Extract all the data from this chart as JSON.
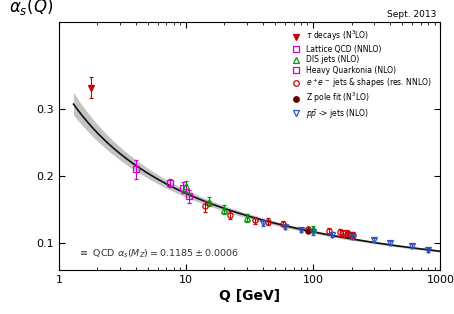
{
  "title": "Sept. 2013",
  "ylabel": "$\\alpha_s(Q)$",
  "xlabel": "Q [GeV]",
  "xlim": [
    1,
    1000
  ],
  "ylim": [
    0.06,
    0.43
  ],
  "yticks": [
    0.1,
    0.2,
    0.3
  ],
  "annotation": "$\\equiv$ QCD $\\alpha_s(M_Z) = 0.1185 \\pm 0.0006$",
  "qcd_band_color": "#aaaaaa",
  "curve_color": "#111111",
  "datasets": {
    "tau": {
      "label": "$\\tau$ decays (N$^3$LO)",
      "color": "#cc0000",
      "marker": "v",
      "filled": true,
      "x": [
        1.78
      ],
      "y": [
        0.332
      ],
      "yerr": [
        0.016
      ]
    },
    "lattice": {
      "label": "Lattice QCD (NNLO)",
      "color": "#cc00cc",
      "marker": "s",
      "filled": false,
      "x": [
        7.5,
        9.5
      ],
      "y": [
        0.19,
        0.183
      ],
      "yerr": [
        0.006,
        0.008
      ]
    },
    "quarkonia": {
      "label": "Heavy Quarkonia (NLO)",
      "color": "#cc00cc",
      "marker": "s",
      "filled": false,
      "x": [
        4.0,
        10.5
      ],
      "y": [
        0.21,
        0.17
      ],
      "yerr": [
        0.014,
        0.01
      ]
    },
    "dis": {
      "label": "DIS jets (NLO)",
      "color": "#009900",
      "marker": "^",
      "filled": false,
      "x": [
        10.0,
        15.0,
        20.0,
        30.0,
        100.0
      ],
      "y": [
        0.185,
        0.162,
        0.15,
        0.138,
        0.121
      ],
      "yerr": [
        0.008,
        0.007,
        0.007,
        0.006,
        0.005
      ]
    },
    "ee": {
      "label": "$e^+e^-$ jets & shapes (res. NNLO)",
      "color": "#cc0000",
      "marker": "o",
      "filled": false,
      "x": [
        14.0,
        22.0,
        35.0,
        44.0,
        58.0,
        91.2,
        133.0,
        161.0,
        172.0,
        183.0,
        189.0,
        197.0,
        206.0
      ],
      "y": [
        0.155,
        0.142,
        0.134,
        0.132,
        0.129,
        0.121,
        0.118,
        0.116,
        0.115,
        0.114,
        0.1135,
        0.1125,
        0.112
      ],
      "yerr": [
        0.008,
        0.006,
        0.005,
        0.005,
        0.004,
        0.003,
        0.004,
        0.005,
        0.005,
        0.005,
        0.004,
        0.004,
        0.004
      ]
    },
    "zpole": {
      "label": "Z pole fit (N$^3$LO)",
      "color": "#660000",
      "marker": "o",
      "filled": true,
      "x": [
        91.2
      ],
      "y": [
        0.1185
      ],
      "yerr": [
        0.0006
      ]
    },
    "ppbar": {
      "label": "$p\\bar{p}$ -> jets (NLO)",
      "color": "#3355bb",
      "marker": "v",
      "filled": false,
      "x": [
        40.0,
        60.0,
        80.0,
        100.0,
        140.0,
        200.0,
        300.0,
        400.0,
        600.0,
        800.0
      ],
      "y": [
        0.1295,
        0.124,
        0.12,
        0.116,
        0.113,
        0.11,
        0.105,
        0.101,
        0.096,
        0.09
      ],
      "yerr": [
        0.004,
        0.003,
        0.003,
        0.003,
        0.003,
        0.003,
        0.003,
        0.003,
        0.003,
        0.003
      ]
    }
  },
  "legend_labels": [
    {
      "label": "$\\tau$ decays (N$^3$LO)",
      "color": "#cc0000",
      "marker": "v",
      "filled": true
    },
    {
      "label": "Lattice QCD (NNLO)",
      "color": "#cc00cc",
      "marker": "s",
      "filled": false
    },
    {
      "label": "DIS jets (NLO)",
      "color": "#009900",
      "marker": "^",
      "filled": false
    },
    {
      "label": "Heavy Quarkonia (NLO)",
      "color": "#cc00cc",
      "marker": "s",
      "filled": false
    },
    {
      "label": "$e^+e^-$ jets & shapes (res. NNLO)",
      "color": "#cc0000",
      "marker": "o",
      "filled": false
    },
    {
      "label": "Z pole fit (N$^3$LO)",
      "color": "#660000",
      "marker": "o",
      "filled": true
    },
    {
      "label": "$p\\bar{p}$ -> jets (NLO)",
      "color": "#3355bb",
      "marker": "v",
      "filled": false
    }
  ]
}
